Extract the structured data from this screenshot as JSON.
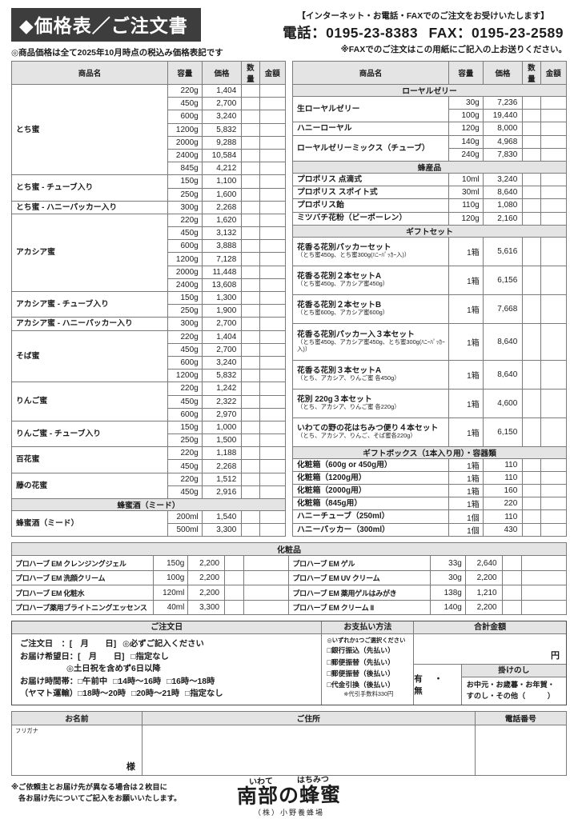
{
  "page": {
    "title": "◆価格表／ご注文書",
    "price_note": "◎商品価格は全て2025年10月時点の税込み価格表記です",
    "contact_note": "【インターネット・お電話・FAXでのご注文をお受けいたします】",
    "phone": "電話：0195-23-8383",
    "fax": "FAX：0195-23-2589",
    "fax_note": "※FAXでのご注文はこの用紙にご記入の上お送りください。",
    "accent_color": "#3d3d3d",
    "grid_color": "#7a7a7a",
    "section_fill": "#e4e4e4"
  },
  "columns": [
    "商品名",
    "容量",
    "価格",
    "数量",
    "金額"
  ],
  "left_table": [
    {
      "name": "とち蜜",
      "rows": [
        [
          "220g",
          "1,404"
        ],
        [
          "450g",
          "2,700"
        ],
        [
          "600g",
          "3,240"
        ],
        [
          "1200g",
          "5,832"
        ],
        [
          "2000g",
          "9,288"
        ],
        [
          "2400g",
          "10,584"
        ],
        [
          "845g",
          "4,212"
        ]
      ]
    },
    {
      "name": "とち蜜 - チューブ入り",
      "rows": [
        [
          "150g",
          "1,100"
        ],
        [
          "250g",
          "1,600"
        ]
      ]
    },
    {
      "name": "とち蜜 - ハニーパッカー入り",
      "rows": [
        [
          "300g",
          "2,268"
        ]
      ]
    },
    {
      "name": "アカシア蜜",
      "rows": [
        [
          "220g",
          "1,620"
        ],
        [
          "450g",
          "3,132"
        ],
        [
          "600g",
          "3,888"
        ],
        [
          "1200g",
          "7,128"
        ],
        [
          "2000g",
          "11,448"
        ],
        [
          "2400g",
          "13,608"
        ]
      ]
    },
    {
      "name": "アカシア蜜 - チューブ入り",
      "rows": [
        [
          "150g",
          "1,300"
        ],
        [
          "250g",
          "1,900"
        ]
      ]
    },
    {
      "name": "アカシア蜜 - ハニーパッカー入り",
      "rows": [
        [
          "300g",
          "2,700"
        ]
      ]
    },
    {
      "name": "そば蜜",
      "rows": [
        [
          "220g",
          "1,404"
        ],
        [
          "450g",
          "2,700"
        ],
        [
          "600g",
          "3,240"
        ],
        [
          "1200g",
          "5,832"
        ]
      ]
    },
    {
      "name": "りんご蜜",
      "rows": [
        [
          "220g",
          "1,242"
        ],
        [
          "450g",
          "2,322"
        ],
        [
          "600g",
          "2,970"
        ]
      ]
    },
    {
      "name": "りんご蜜 - チューブ入り",
      "rows": [
        [
          "150g",
          "1,000"
        ],
        [
          "250g",
          "1,500"
        ]
      ]
    },
    {
      "name": "百花蜜",
      "rows": [
        [
          "220g",
          "1,188"
        ],
        [
          "450g",
          "2,268"
        ]
      ]
    },
    {
      "name": "藤の花蜜",
      "rows": [
        [
          "220g",
          "1,512"
        ],
        [
          "450g",
          "2,916"
        ]
      ]
    },
    {
      "section": "蜂蜜酒（ミード）"
    },
    {
      "name": "蜂蜜酒（ミード）",
      "rows": [
        [
          "200ml",
          "1,540"
        ],
        [
          "500ml",
          "3,300"
        ]
      ]
    }
  ],
  "right_table": [
    {
      "section": "ローヤルゼリー"
    },
    {
      "name": "生ローヤルゼリー",
      "rows": [
        [
          "30g",
          "7,236"
        ],
        [
          "100g",
          "19,440"
        ]
      ]
    },
    {
      "name": "ハニーローヤル",
      "rows": [
        [
          "120g",
          "8,000"
        ]
      ]
    },
    {
      "name": "ローヤルゼリーミックス（チューブ）",
      "rows": [
        [
          "140g",
          "4,968"
        ],
        [
          "240g",
          "7,830"
        ]
      ]
    },
    {
      "section": "蜂産品"
    },
    {
      "name": "プロポリス 点滴式",
      "rows": [
        [
          "10ml",
          "3,240"
        ]
      ]
    },
    {
      "name": "プロポリス スポイト式",
      "rows": [
        [
          "30ml",
          "8,640"
        ]
      ]
    },
    {
      "name": "プロポリス飴",
      "rows": [
        [
          "110g",
          "1,080"
        ]
      ]
    },
    {
      "name": "ミツバチ花粉（ビーポーレン）",
      "rows": [
        [
          "120g",
          "2,160"
        ]
      ]
    },
    {
      "section": "ギフトセット"
    },
    {
      "name": "花香る花別パッカーセット",
      "sub": "（とち蜜450g、とち蜜300g(ﾊﾆｰﾊﾟｯｶｰ入)）",
      "h": 2,
      "rows": [
        [
          "1箱",
          "5,616"
        ]
      ]
    },
    {
      "name": "花香る花別２本セットA",
      "sub": "（とち蜜450g、アカシア蜜450g）",
      "h": 2,
      "rows": [
        [
          "1箱",
          "6,156"
        ]
      ]
    },
    {
      "name": "花香る花別２本セットB",
      "sub": "（とち蜜600g、アカシア蜜600g）",
      "h": 2,
      "rows": [
        [
          "1箱",
          "7,668"
        ]
      ]
    },
    {
      "name": "花香る花別パッカー入３本セット",
      "sub": "（とち蜜450g、アカシア蜜450g、とち蜜300g(ﾊﾆｰﾊﾟｯｶｰ入)）",
      "h": 3,
      "rows": [
        [
          "1箱",
          "8,640"
        ]
      ]
    },
    {
      "name": "花香る花別３本セットA",
      "sub": "（とち、アカシア、りんご蜜 各450g）",
      "h": 2,
      "rows": [
        [
          "1箱",
          "8,640"
        ]
      ]
    },
    {
      "name": "花別 220g３本セット",
      "sub": "（とち、アカシア、りんご蜜 各220g）",
      "h": 2,
      "rows": [
        [
          "1箱",
          "4,600"
        ]
      ]
    },
    {
      "name": "いわての野の花はちみつ便り４本セット",
      "sub": "（とち、アカシア、りんご、そば蜜各220g）",
      "h": 2,
      "rows": [
        [
          "1箱",
          "6,150"
        ]
      ]
    },
    {
      "section": "ギフトボックス（1本入り用）・容器類"
    },
    {
      "name": "化粧箱（600g or 450g用）",
      "rows": [
        [
          "1箱",
          "110"
        ]
      ]
    },
    {
      "name": "化粧箱（1200g用）",
      "rows": [
        [
          "1箱",
          "110"
        ]
      ]
    },
    {
      "name": "化粧箱（2000g用）",
      "rows": [
        [
          "1箱",
          "160"
        ]
      ]
    },
    {
      "name": "化粧箱（845g用）",
      "rows": [
        [
          "1箱",
          "220"
        ]
      ]
    },
    {
      "name": "ハニーチューブ（250ml）",
      "rows": [
        [
          "1個",
          "110"
        ]
      ]
    },
    {
      "name": "ハニーパッカー（300ml）",
      "rows": [
        [
          "1個",
          "430"
        ]
      ]
    }
  ],
  "cosmetics": {
    "header": "化粧品",
    "rows": [
      [
        [
          "プロハーブ EM クレンジングジェル",
          "150g",
          "2,200"
        ],
        [
          "プロハーブ EM ゲル",
          "33g",
          "2,640"
        ]
      ],
      [
        [
          "プロハーブ EM 洗顔クリーム",
          "100g",
          "2,200"
        ],
        [
          "プロハーブ EM UV クリーム",
          "30g",
          "2,200"
        ]
      ],
      [
        [
          "プロハーブ EM 化粧水",
          "120ml",
          "2,200"
        ],
        [
          "プロハーブ EM 薬用ゲルはみがき",
          "138g",
          "1,210"
        ]
      ],
      [
        [
          "プロハーブ薬用ブライトニングエッセンス",
          "40ml",
          "3,300"
        ],
        [
          "プロハーブ EM クリーム II",
          "140g",
          "2,200"
        ]
      ]
    ]
  },
  "order": {
    "header": "ご注文日",
    "date_label": "ご注文日　：",
    "date_value": "[　月　　日]",
    "date_note": "◎必ずご記入ください",
    "wish_label": "お届け希望日：",
    "wish_value": "[　月　　日]",
    "wish_option": "□指定なし",
    "wish_note": "◎土日祝を含めず6日以降",
    "time_label": "お届け時間帯：",
    "carrier_label": "（ヤマト運輸）",
    "time_row1": [
      "□午前中",
      "□14時～16時",
      "□16時～18時"
    ],
    "time_row2": [
      "□18時～20時",
      "□20時～21時",
      "□指定なし"
    ]
  },
  "payment": {
    "header": "お支払い方法",
    "note": "◎いずれか1つご選択ください",
    "options": [
      "□銀行振込（先払い）",
      "□郵便振替（先払い）",
      "□郵便振替（後払い）",
      "□代金引換（後払い）"
    ],
    "fee_note": "※代引手数料330円"
  },
  "total": {
    "header": "合計金額",
    "currency": "円"
  },
  "noshi": {
    "header": "掛けのし",
    "choice": "有　・　無",
    "line1": "お中元・お歳暮・お年賀・",
    "line2": "すのし・その他（　　　）"
  },
  "customer": {
    "name_header": "お名前",
    "address_header": "ご住所",
    "phone_header": "電話番号",
    "furigana": "フリガナ",
    "sama": "様"
  },
  "footer": {
    "note1": "※ご依頼主とお届け先が異なる場合は２枚目に",
    "note2": "各お届け先についてご記入をお願いいたします。",
    "logo_top1": "いわて",
    "logo_top2": "はちみつ",
    "logo_main": "南部の蜂蜜",
    "company": "（株）小野養蜂場"
  }
}
